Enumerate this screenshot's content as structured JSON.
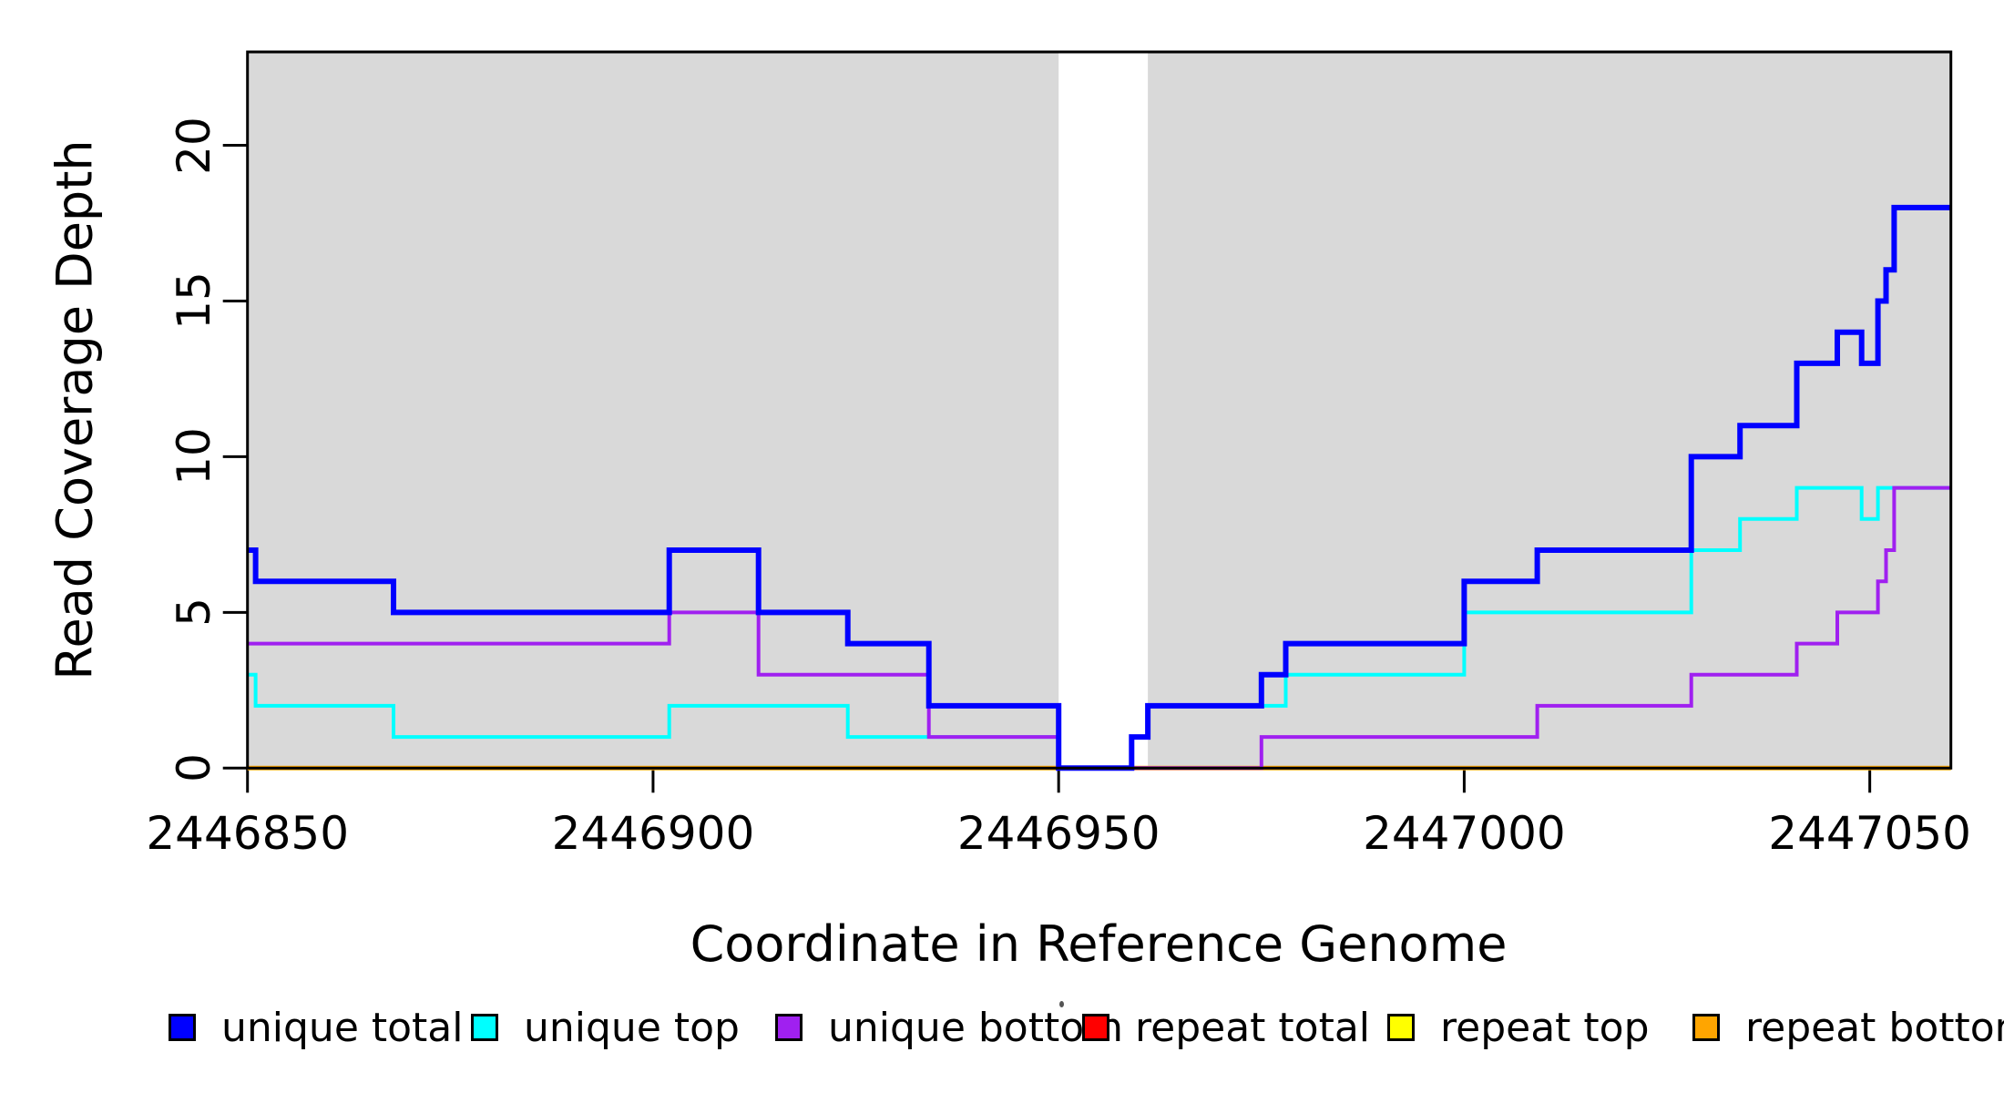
{
  "y_axis": {
    "label": "Read Coverage Depth",
    "ticks": [
      {
        "value": 0,
        "label": "0"
      },
      {
        "value": 5,
        "label": "5"
      },
      {
        "value": 10,
        "label": "10"
      },
      {
        "value": 15,
        "label": "15"
      },
      {
        "value": 20,
        "label": "20"
      }
    ]
  },
  "x_axis": {
    "label": "Coordinate in Reference Genome",
    "ticks": [
      {
        "value": 2446850,
        "label": "2446850"
      },
      {
        "value": 2446900,
        "label": "2446900"
      },
      {
        "value": 2446950,
        "label": "2446950"
      },
      {
        "value": 2447000,
        "label": "2447000"
      },
      {
        "value": 2447050,
        "label": "2447050"
      }
    ]
  },
  "chart_data": {
    "type": "line",
    "subtype": "step-post",
    "xlabel": "Coordinate in Reference Genome",
    "ylabel": "Read Coverage Depth",
    "xlim": [
      2446850,
      2447060
    ],
    "ylim": [
      0,
      23
    ],
    "grid": false,
    "legend_position": "bottom",
    "background_shading": {
      "color": "#D9D9D9",
      "regions": [
        [
          2446850,
          2446950
        ],
        [
          2446961,
          2447060
        ]
      ]
    },
    "gap_region": [
      2446950,
      2446961
    ],
    "series": [
      {
        "name": "repeat total",
        "color": "#FF0000",
        "width": 3.5,
        "points": [
          [
            2446850,
            0
          ]
        ]
      },
      {
        "name": "repeat top",
        "color": "#FFFF00",
        "width": 3.5,
        "points": [
          [
            2446850,
            0
          ]
        ]
      },
      {
        "name": "repeat bottom",
        "color": "#FFA500",
        "width": 5,
        "points": [
          [
            2446850,
            0
          ]
        ]
      },
      {
        "name": "unique top",
        "color": "#00FFFF",
        "width": 4,
        "points": [
          [
            2446850,
            3
          ],
          [
            2446851,
            2
          ],
          [
            2446868,
            1
          ],
          [
            2446902,
            2
          ],
          [
            2446924,
            1
          ],
          [
            2446950,
            0
          ],
          [
            2446959,
            1
          ],
          [
            2446961,
            2
          ],
          [
            2446978,
            3
          ],
          [
            2447000,
            5
          ],
          [
            2447028,
            7
          ],
          [
            2447034,
            8
          ],
          [
            2447041,
            9
          ],
          [
            2447049,
            8
          ],
          [
            2447051,
            9
          ]
        ]
      },
      {
        "name": "unique bottom",
        "color": "#A020F0",
        "width": 4,
        "points": [
          [
            2446850,
            4
          ],
          [
            2446902,
            5
          ],
          [
            2446913,
            3
          ],
          [
            2446934,
            1
          ],
          [
            2446950,
            0
          ],
          [
            2446975,
            1
          ],
          [
            2447009,
            2
          ],
          [
            2447028,
            3
          ],
          [
            2447041,
            4
          ],
          [
            2447046,
            5
          ],
          [
            2447051,
            6
          ],
          [
            2447052,
            7
          ],
          [
            2447053,
            9
          ]
        ]
      },
      {
        "name": "unique total",
        "color": "#0000FF",
        "width": 6,
        "points": [
          [
            2446850,
            7
          ],
          [
            2446851,
            6
          ],
          [
            2446868,
            5
          ],
          [
            2446902,
            7
          ],
          [
            2446913,
            5
          ],
          [
            2446924,
            4
          ],
          [
            2446934,
            2
          ],
          [
            2446950,
            0
          ],
          [
            2446959,
            1
          ],
          [
            2446961,
            2
          ],
          [
            2446975,
            3
          ],
          [
            2446978,
            4
          ],
          [
            2447000,
            6
          ],
          [
            2447009,
            7
          ],
          [
            2447028,
            10
          ],
          [
            2447034,
            11
          ],
          [
            2447041,
            13
          ],
          [
            2447046,
            14
          ],
          [
            2447049,
            13
          ],
          [
            2447051,
            15
          ],
          [
            2447052,
            16
          ],
          [
            2447053,
            18
          ]
        ]
      }
    ]
  },
  "legend": {
    "items": [
      {
        "label": "unique total",
        "color": "#0000FF"
      },
      {
        "label": "unique top",
        "color": "#00FFFF"
      },
      {
        "label": "unique bottom",
        "color": "#A020F0"
      },
      {
        "label": "repeat total",
        "color": "#FF0000"
      },
      {
        "label": "repeat top",
        "color": "#FFFF00"
      },
      {
        "label": "repeat bottom",
        "color": "#FFA500"
      }
    ]
  },
  "plot_colors": {
    "background": "#FFFFFF",
    "shading": "#D9D9D9",
    "axis": "#000000"
  }
}
